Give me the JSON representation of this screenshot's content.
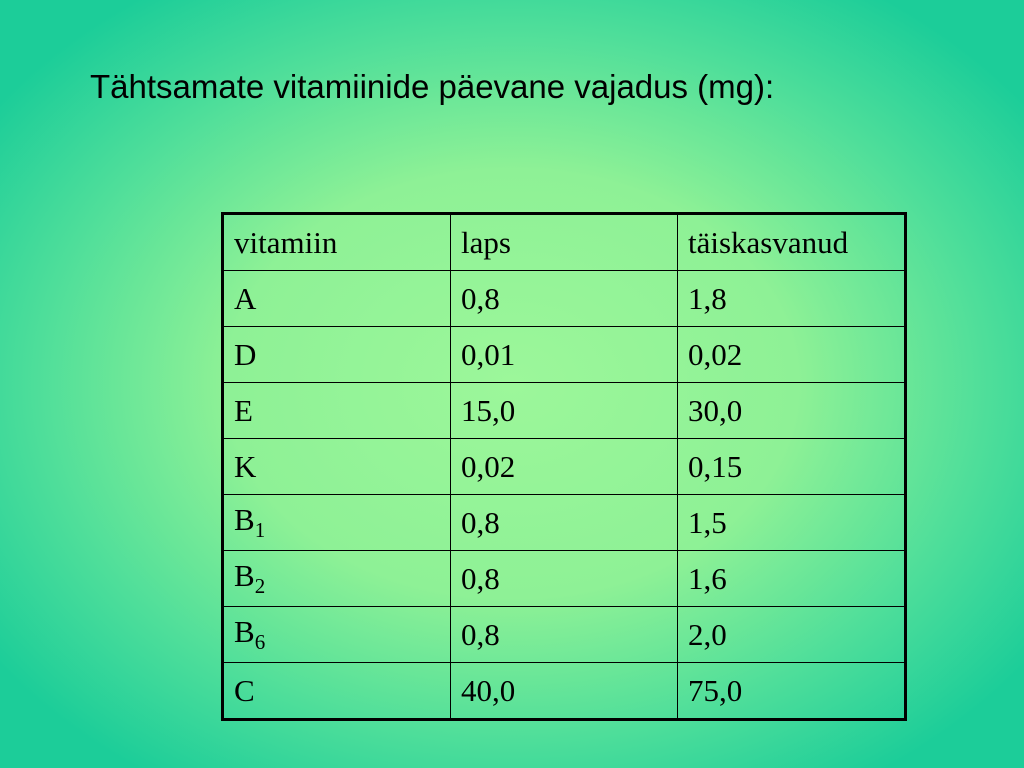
{
  "title": "Tähtsamate vitamiinide päevane vajadus (mg):",
  "table": {
    "header": [
      "vitamiin",
      "laps",
      "täiskasvanud"
    ],
    "rows": [
      [
        "A",
        "0,8",
        "1,8"
      ],
      [
        "D",
        "0,01",
        "0,02"
      ],
      [
        "E",
        "15,0",
        "30,0"
      ],
      [
        "K",
        "0,02",
        "0,15"
      ],
      [
        {
          "text": "B",
          "sub": "1"
        },
        "0,8",
        "1,5"
      ],
      [
        {
          "text": "B",
          "sub": "2"
        },
        "0,8",
        "1,6"
      ],
      [
        {
          "text": "B",
          "sub": "6"
        },
        "0,8",
        "2,0"
      ],
      [
        "C",
        "40,0",
        "75,0"
      ]
    ]
  }
}
